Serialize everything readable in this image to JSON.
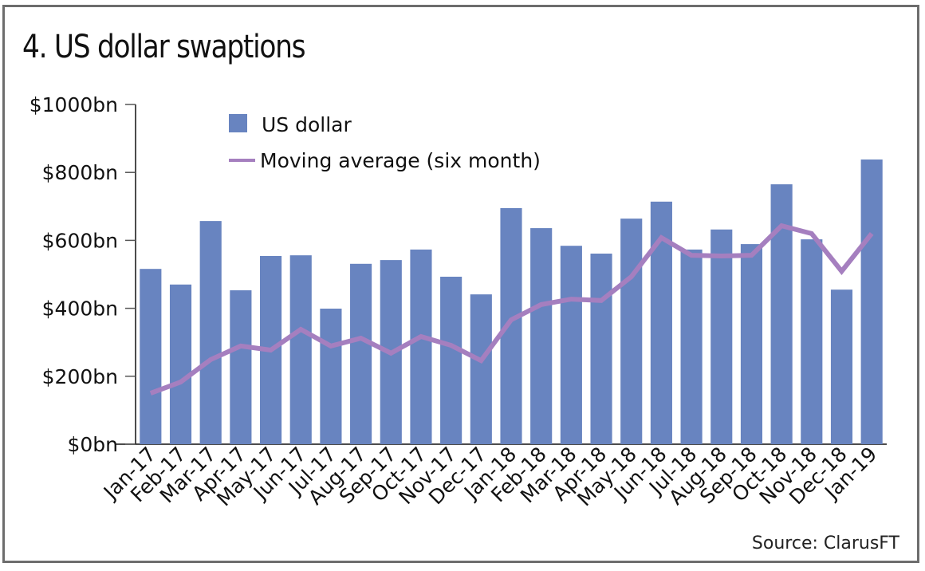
{
  "chart_data": {
    "type": "bar",
    "title": "4. US dollar swaptions",
    "xlabel": "",
    "ylabel": "",
    "ylim": [
      0,
      1000
    ],
    "yticks": [
      0,
      200,
      400,
      600,
      800,
      1000
    ],
    "ytick_labels": [
      "$0bn",
      "$200bn",
      "$400bn",
      "$600bn",
      "$800bn",
      "$1000bn"
    ],
    "categories": [
      "Jan-17",
      "Feb-17",
      "Mar-17",
      "Apr-17",
      "May-17",
      "Jun-17",
      "Jul-17",
      "Aug-17",
      "Sep-17",
      "Oct-17",
      "Nov-17",
      "Dec-17",
      "Jan-18",
      "Feb-18",
      "Mar-18",
      "Apr-18",
      "May-18",
      "Jun-18",
      "Jul-18",
      "Aug-18",
      "Sep-18",
      "Oct-18",
      "Nov-18",
      "Dec-18",
      "Jan-19"
    ],
    "series": [
      {
        "name": "US dollar",
        "type": "bar",
        "color": "#6884c0",
        "values": [
          516,
          470,
          657,
          453,
          554,
          556,
          399,
          531,
          542,
          573,
          493,
          441,
          695,
          636,
          584,
          561,
          664,
          714,
          573,
          632,
          589,
          765,
          603,
          455,
          838
        ]
      },
      {
        "name": "Moving average (six month)",
        "type": "line",
        "color": "#a57fbf",
        "values": [
          150,
          183,
          249,
          289,
          277,
          338,
          289,
          312,
          268,
          317,
          291,
          246,
          366,
          411,
          427,
          423,
          493,
          608,
          556,
          554,
          556,
          643,
          620,
          509,
          620
        ]
      }
    ],
    "legend_position": "top-left",
    "grid": false,
    "source": "Source: ClarusFT"
  }
}
